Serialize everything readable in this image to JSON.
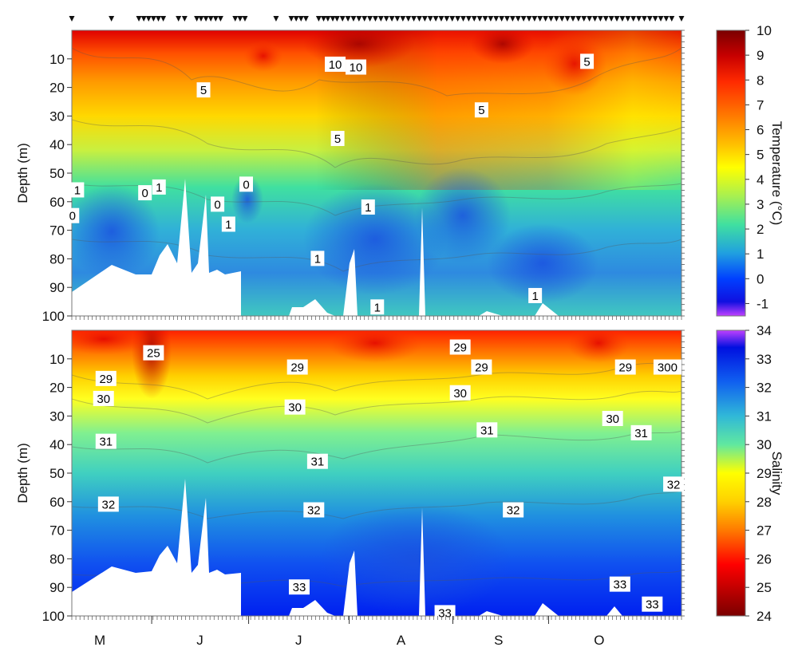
{
  "chart_data": [
    {
      "type": "heatmap",
      "panel": "top",
      "variable": "Temperature",
      "ylabel": "Depth (m)",
      "colorbar_label": "Temperature (°C)",
      "ylim": [
        100,
        0
      ],
      "yticks": [
        10,
        20,
        30,
        40,
        50,
        60,
        70,
        80,
        90,
        100
      ],
      "xticks": [
        "M",
        "J",
        "J",
        "A",
        "S",
        "O"
      ],
      "colorbar_range": [
        -1.5,
        10
      ],
      "colorbar_ticks": [
        10,
        9,
        8,
        7,
        6,
        5,
        4,
        3,
        2,
        1,
        0,
        -1
      ],
      "contour_labels": [
        {
          "text": "10",
          "x": 0.432,
          "depth": 12
        },
        {
          "text": "10",
          "x": 0.466,
          "depth": 13
        },
        {
          "text": "5",
          "x": 0.216,
          "depth": 21
        },
        {
          "text": "5",
          "x": 0.672,
          "depth": 28
        },
        {
          "text": "5",
          "x": 0.845,
          "depth": 11
        },
        {
          "text": "5",
          "x": 0.436,
          "depth": 38
        },
        {
          "text": "1",
          "x": 0.009,
          "depth": 56
        },
        {
          "text": "0",
          "x": 0.12,
          "depth": 57
        },
        {
          "text": "1",
          "x": 0.143,
          "depth": 55
        },
        {
          "text": "0",
          "x": 0.286,
          "depth": 54
        },
        {
          "text": "0",
          "x": 0.239,
          "depth": 61
        },
        {
          "text": "1",
          "x": 0.257,
          "depth": 68
        },
        {
          "text": "1",
          "x": 0.486,
          "depth": 62
        },
        {
          "text": "1",
          "x": 0.403,
          "depth": 80
        },
        {
          "text": "1",
          "x": 0.501,
          "depth": 97
        },
        {
          "text": "1",
          "x": 0.76,
          "depth": 93
        },
        {
          "text": "0",
          "x": 0.001,
          "depth": 65
        }
      ]
    },
    {
      "type": "heatmap",
      "panel": "bottom",
      "variable": "Salinity",
      "ylabel": "Depth (m)",
      "colorbar_label": "Salinity",
      "ylim": [
        100,
        0
      ],
      "yticks": [
        10,
        20,
        30,
        40,
        50,
        60,
        70,
        80,
        90,
        100
      ],
      "xticks": [
        "M",
        "J",
        "J",
        "A",
        "S",
        "O"
      ],
      "colorbar_range": [
        24,
        34
      ],
      "colorbar_ticks": [
        34,
        33,
        32,
        31,
        30,
        29,
        28,
        27,
        26,
        25,
        24
      ],
      "contour_labels": [
        {
          "text": "25",
          "x": 0.134,
          "depth": 8
        },
        {
          "text": "29",
          "x": 0.056,
          "depth": 17
        },
        {
          "text": "30",
          "x": 0.052,
          "depth": 24
        },
        {
          "text": "29",
          "x": 0.37,
          "depth": 13
        },
        {
          "text": "30",
          "x": 0.366,
          "depth": 27
        },
        {
          "text": "29",
          "x": 0.637,
          "depth": 6
        },
        {
          "text": "29",
          "x": 0.672,
          "depth": 13
        },
        {
          "text": "30",
          "x": 0.637,
          "depth": 22
        },
        {
          "text": "29",
          "x": 0.908,
          "depth": 13
        },
        {
          "text": "300",
          "x": 0.977,
          "depth": 13
        },
        {
          "text": "30",
          "x": 0.887,
          "depth": 31
        },
        {
          "text": "31",
          "x": 0.056,
          "depth": 39
        },
        {
          "text": "31",
          "x": 0.403,
          "depth": 46
        },
        {
          "text": "31",
          "x": 0.681,
          "depth": 35
        },
        {
          "text": "31",
          "x": 0.934,
          "depth": 36
        },
        {
          "text": "32",
          "x": 0.06,
          "depth": 61
        },
        {
          "text": "32",
          "x": 0.397,
          "depth": 63
        },
        {
          "text": "32",
          "x": 0.724,
          "depth": 63
        },
        {
          "text": "32",
          "x": 0.987,
          "depth": 54
        },
        {
          "text": "33",
          "x": 0.373,
          "depth": 90
        },
        {
          "text": "33",
          "x": 0.612,
          "depth": 99
        },
        {
          "text": "33",
          "x": 0.899,
          "depth": 89
        },
        {
          "text": "33",
          "x": 0.952,
          "depth": 96
        }
      ]
    }
  ],
  "colors": {
    "temperature_scale": [
      "#7a0000",
      "#c80000",
      "#ff2a00",
      "#ff7a00",
      "#ffc000",
      "#ffff00",
      "#a8f050",
      "#40e0a0",
      "#20a0e0",
      "#0040ff",
      "#1010e0",
      "#c040ff"
    ],
    "salinity_scale": [
      "#7a0000",
      "#ff0000",
      "#ff7a00",
      "#ffd000",
      "#ffff00",
      "#60e8a0",
      "#30b8d8",
      "#1060f0",
      "#0010e0",
      "#c040ff"
    ]
  }
}
